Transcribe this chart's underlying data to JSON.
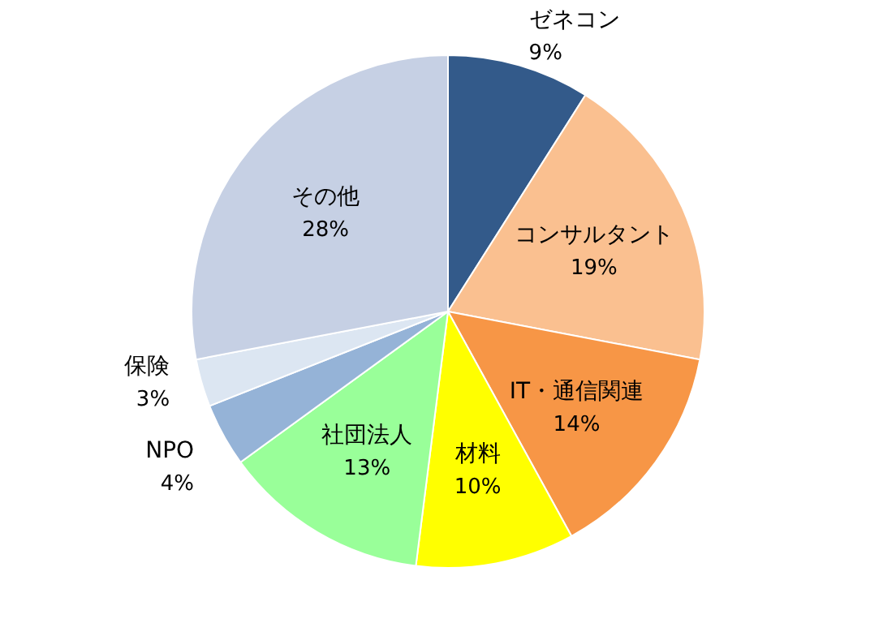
{
  "chart_data": {
    "type": "pie",
    "categories": [
      "ゼネコン",
      "コンサルタント",
      "IT・通信関連",
      "材料",
      "社団法人",
      "NPO",
      "保険",
      "その他"
    ],
    "values": [
      9,
      19,
      14,
      10,
      13,
      4,
      3,
      28
    ],
    "value_labels": [
      "9%",
      "19%",
      "14%",
      "10%",
      "13%",
      "4%",
      "3%",
      "28%"
    ],
    "colors": [
      "#335a8a",
      "#fac090",
      "#f79646",
      "#ffff00",
      "#99ff99",
      "#95b3d7",
      "#dce6f2",
      "#c6d0e4"
    ]
  }
}
